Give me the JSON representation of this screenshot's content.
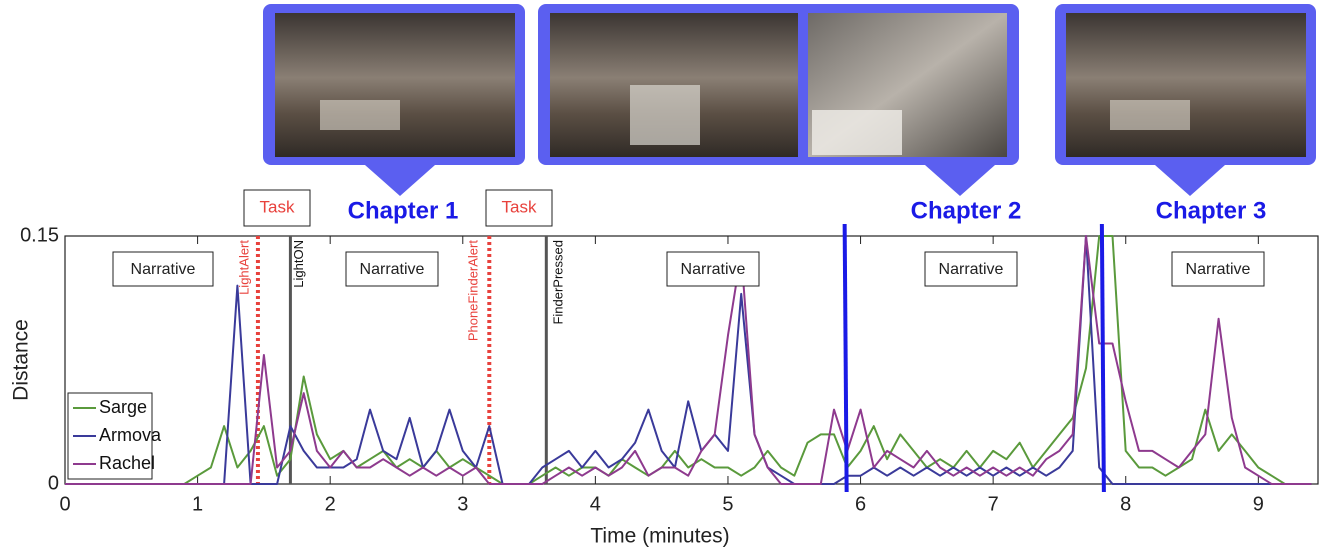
{
  "chart_data": {
    "type": "line",
    "xlabel": "Time (minutes)",
    "ylabel": "Distance",
    "xlim": [
      0,
      9.45
    ],
    "ylim": [
      0,
      0.15
    ],
    "xticks": [
      0,
      1,
      2,
      3,
      4,
      5,
      6,
      7,
      8,
      9
    ],
    "yticks": [
      0,
      0.15
    ],
    "legend": "lower left",
    "x": [
      0,
      0.1,
      0.2,
      0.3,
      0.4,
      0.5,
      0.6,
      0.7,
      0.8,
      0.9,
      1,
      1.1,
      1.2,
      1.3,
      1.4,
      1.5,
      1.6,
      1.7,
      1.8,
      1.9,
      2,
      2.1,
      2.2,
      2.3,
      2.4,
      2.5,
      2.6,
      2.7,
      2.8,
      2.9,
      3,
      3.1,
      3.2,
      3.3,
      3.4,
      3.5,
      3.6,
      3.7,
      3.8,
      3.9,
      4,
      4.1,
      4.2,
      4.3,
      4.4,
      4.5,
      4.6,
      4.7,
      4.8,
      4.9,
      5,
      5.1,
      5.2,
      5.3,
      5.4,
      5.5,
      5.6,
      5.7,
      5.8,
      5.9,
      6,
      6.1,
      6.2,
      6.3,
      6.4,
      6.5,
      6.6,
      6.7,
      6.8,
      6.9,
      7,
      7.1,
      7.2,
      7.3,
      7.4,
      7.5,
      7.6,
      7.7,
      7.8,
      7.9,
      8,
      8.1,
      8.2,
      8.3,
      8.4,
      8.5,
      8.6,
      8.7,
      8.8,
      8.9,
      9,
      9.1,
      9.2,
      9.3,
      9.4
    ],
    "series": [
      {
        "name": "Sarge",
        "color": "#5a9a3c",
        "values": [
          0,
          0,
          0,
          0,
          0,
          0,
          0,
          0,
          0,
          0,
          0.005,
          0.01,
          0.035,
          0.01,
          0.02,
          0.035,
          0.005,
          0.015,
          0.065,
          0.03,
          0.015,
          0.02,
          0.01,
          0.015,
          0.02,
          0.01,
          0.015,
          0.01,
          0.02,
          0.01,
          0.015,
          0.01,
          0.005,
          0,
          0,
          0,
          0.005,
          0.01,
          0.005,
          0.01,
          0.01,
          0.005,
          0.015,
          0.01,
          0.005,
          0.01,
          0.02,
          0.01,
          0.015,
          0.01,
          0.01,
          0.005,
          0.01,
          0.02,
          0.01,
          0.005,
          0.025,
          0.03,
          0.03,
          0.01,
          0.02,
          0.035,
          0.015,
          0.03,
          0.02,
          0.01,
          0.015,
          0.01,
          0.02,
          0.01,
          0.02,
          0.015,
          0.025,
          0.01,
          0.02,
          0.03,
          0.04,
          0.07,
          0.15,
          0.15,
          0.02,
          0.01,
          0.01,
          0.005,
          0.01,
          0.015,
          0.045,
          0.02,
          0.03,
          0.02,
          0.01,
          0.005,
          0,
          0,
          0
        ]
      },
      {
        "name": "Armova",
        "color": "#3a3a9a",
        "values": [
          0,
          0,
          0,
          0,
          0,
          0,
          0,
          0,
          0,
          0,
          0,
          0,
          0,
          0.12,
          0,
          0,
          0,
          0.035,
          0.02,
          0.01,
          0.01,
          0.01,
          0.015,
          0.045,
          0.02,
          0.015,
          0.04,
          0.01,
          0.02,
          0.045,
          0.02,
          0.01,
          0.035,
          0,
          0,
          0,
          0.01,
          0.015,
          0.02,
          0.01,
          0.02,
          0.01,
          0.015,
          0.025,
          0.045,
          0.02,
          0.01,
          0.05,
          0.02,
          0.03,
          0.02,
          0.115,
          0.03,
          0.01,
          0.005,
          0,
          0,
          0,
          0,
          0.005,
          0.005,
          0.01,
          0.005,
          0.01,
          0.005,
          0.01,
          0.005,
          0.01,
          0.005,
          0.01,
          0.005,
          0.01,
          0.005,
          0.01,
          0.005,
          0.01,
          0.02,
          0.15,
          0.01,
          0,
          0,
          0,
          0,
          0,
          0,
          0,
          0,
          0,
          0,
          0,
          0,
          0,
          0,
          0,
          0
        ]
      },
      {
        "name": "Rachel",
        "color": "#8e3a8e",
        "values": [
          0,
          0,
          0,
          0,
          0,
          0,
          0,
          0,
          0,
          0,
          0,
          0,
          0,
          0,
          0,
          0.078,
          0.01,
          0.02,
          0.055,
          0.02,
          0.01,
          0.02,
          0.01,
          0.01,
          0.015,
          0.01,
          0.005,
          0.01,
          0.005,
          0.01,
          0.005,
          0.01,
          0,
          0,
          0,
          0,
          0,
          0.005,
          0.01,
          0.005,
          0.01,
          0.005,
          0.01,
          0.02,
          0.005,
          0.01,
          0.01,
          0.005,
          0.02,
          0.03,
          0.09,
          0.14,
          0.03,
          0.01,
          0,
          0,
          0,
          0,
          0.045,
          0.02,
          0.045,
          0.01,
          0.02,
          0.015,
          0.01,
          0.02,
          0.01,
          0.005,
          0.01,
          0.005,
          0.01,
          0.005,
          0.01,
          0.005,
          0.015,
          0.02,
          0.03,
          0.15,
          0.085,
          0.085,
          0.05,
          0.02,
          0.02,
          0.015,
          0.01,
          0.02,
          0.03,
          0.1,
          0.04,
          0.01,
          0.005,
          0,
          0,
          0,
          0
        ]
      }
    ],
    "events": [
      {
        "label": "LightAlert",
        "x": 1.455,
        "color": "#e8413c",
        "style": "dotted"
      },
      {
        "label": "LightON",
        "x": 1.7,
        "color": "#555555",
        "style": "solid"
      },
      {
        "label": "PhoneFinderAlert",
        "x": 3.2,
        "color": "#e8413c",
        "style": "dotted"
      },
      {
        "label": "FinderPressed",
        "x": 3.63,
        "color": "#555555",
        "style": "solid"
      }
    ],
    "chapter_boundaries": [
      5.88,
      7.82
    ],
    "chapter_titles": [
      "Chapter 1",
      "Chapter 2",
      "Chapter 3"
    ],
    "segment_labels": [
      "Narrative",
      "Narrative",
      "Narrative",
      "Narrative",
      "Narrative"
    ],
    "task_labels": [
      "Task",
      "Task"
    ]
  }
}
